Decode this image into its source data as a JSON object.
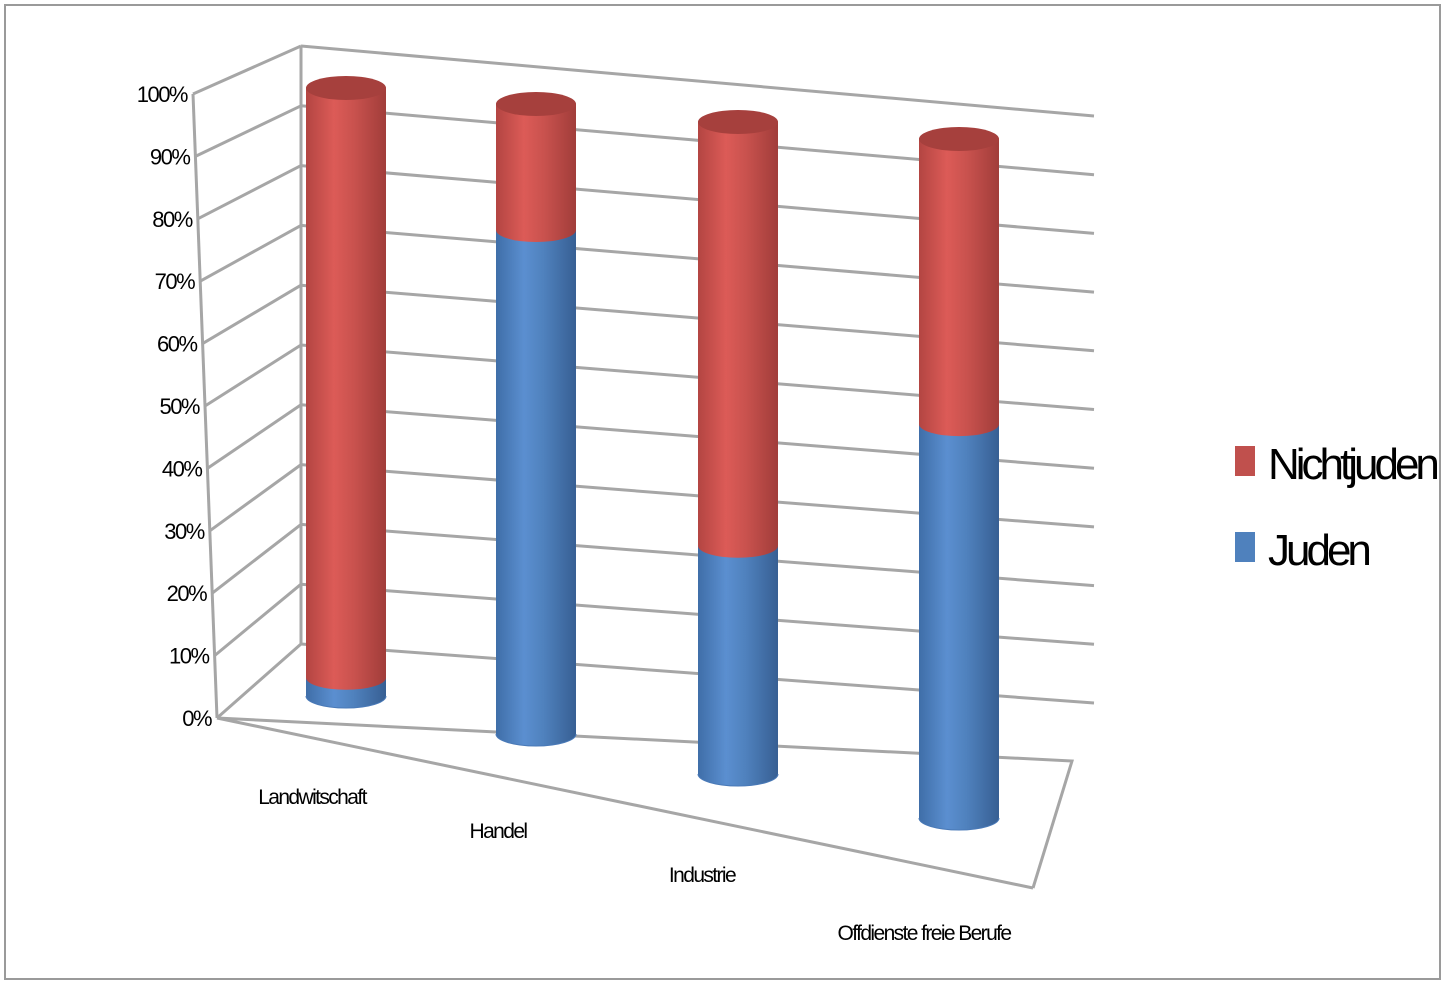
{
  "chart_data": {
    "type": "bar",
    "subtype": "stacked-100-percent-3d-cylinder",
    "categories": [
      "Landwitschaft",
      "Handel",
      "Industrie",
      "Offdienste freie Berufe"
    ],
    "series": [
      {
        "name": "Juden",
        "values": [
          3,
          80,
          35,
          58
        ],
        "color": "#4f81bd"
      },
      {
        "name": "Nichtjuden",
        "values": [
          97,
          20,
          65,
          42
        ],
        "color": "#c0504d"
      }
    ],
    "y_ticks": [
      "0%",
      "10%",
      "20%",
      "30%",
      "40%",
      "50%",
      "60%",
      "70%",
      "80%",
      "90%",
      "100%"
    ],
    "ylim": [
      0,
      100
    ],
    "grid": true,
    "legend_position": "right",
    "legend_order": [
      "Nichtjuden",
      "Juden"
    ]
  }
}
